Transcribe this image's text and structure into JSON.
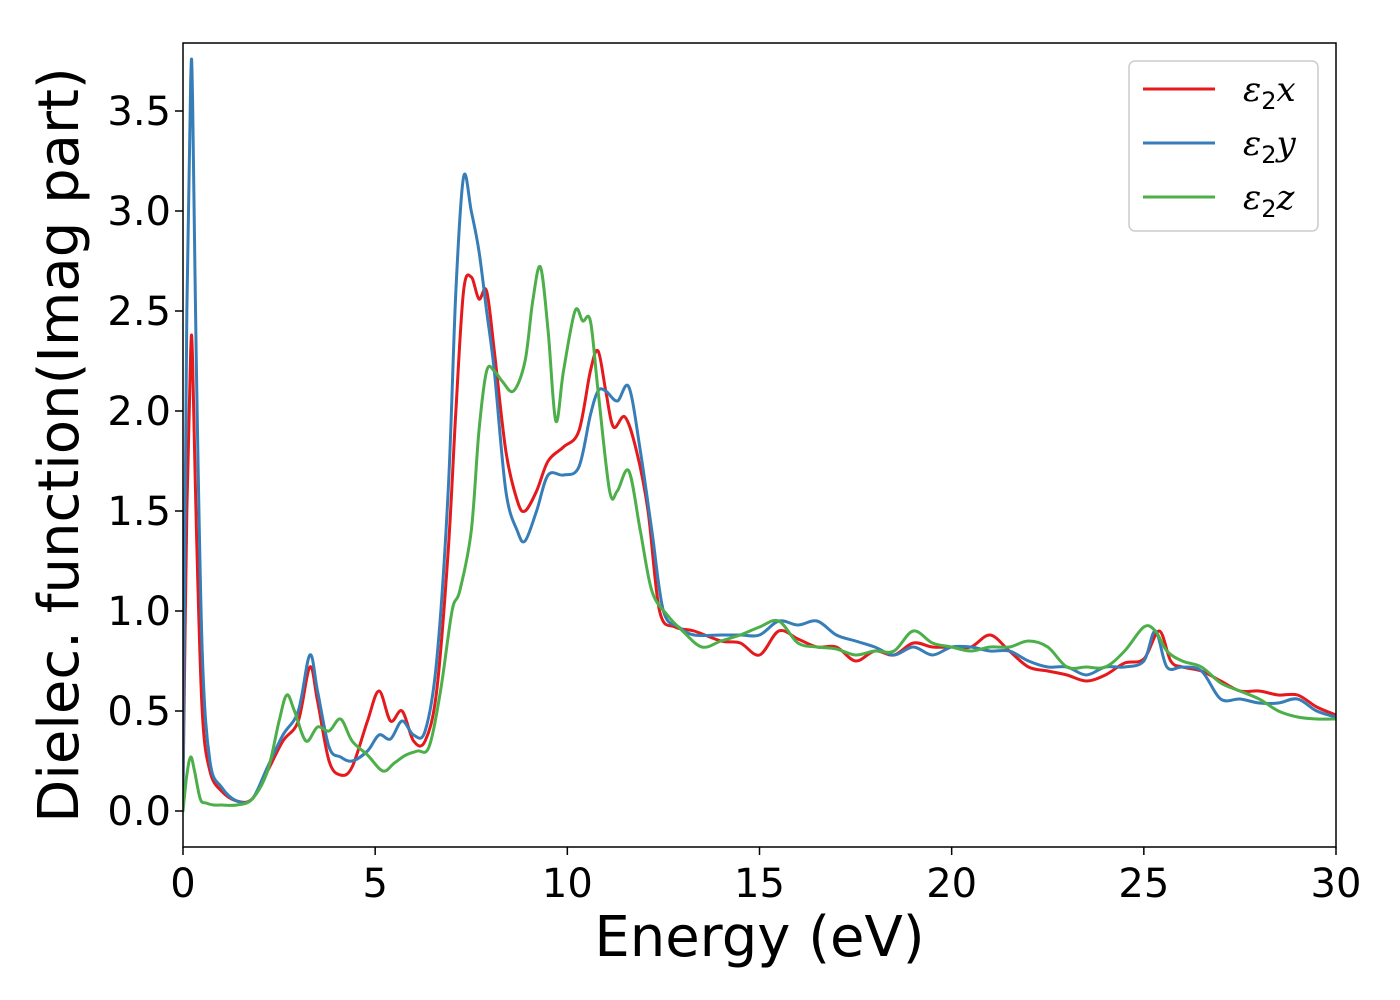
{
  "chart_data": {
    "type": "line",
    "xlabel": "Energy (eV)",
    "ylabel": "Dielec. function(Imag part)",
    "xlim": [
      0,
      30
    ],
    "ylim": [
      -0.18,
      3.84
    ],
    "xticks": [
      "0",
      "5",
      "10",
      "15",
      "20",
      "25",
      "30"
    ],
    "yticks": [
      "0.0",
      "0.5",
      "1.0",
      "1.5",
      "2.0",
      "2.5",
      "3.0",
      "3.5"
    ],
    "grid": false,
    "legend_position": "top-right",
    "series": [
      {
        "name": "ε2x",
        "legend_base": "ε",
        "legend_sub": "2",
        "legend_suffix": "x",
        "color": "#e41a1c",
        "x": [
          0,
          0.1,
          0.2,
          0.25,
          0.35,
          0.5,
          0.7,
          1.0,
          1.4,
          1.8,
          2.2,
          2.6,
          3.0,
          3.3,
          3.5,
          3.8,
          4.1,
          4.4,
          4.8,
          5.1,
          5.4,
          5.7,
          6.0,
          6.3,
          6.6,
          6.9,
          7.1,
          7.3,
          7.5,
          7.7,
          7.9,
          8.1,
          8.4,
          8.7,
          8.9,
          9.2,
          9.5,
          9.9,
          10.3,
          10.6,
          10.8,
          11.0,
          11.2,
          11.5,
          11.8,
          12.1,
          12.4,
          12.8,
          13.3,
          14.0,
          14.5,
          15.0,
          15.5,
          16.0,
          16.5,
          17.0,
          17.5,
          18.0,
          18.5,
          19.0,
          19.5,
          20.0,
          20.5,
          21.0,
          21.5,
          22.0,
          22.5,
          23.0,
          23.5,
          24.0,
          24.5,
          25.0,
          25.4,
          25.7,
          26.0,
          26.5,
          27.0,
          27.5,
          28.0,
          28.5,
          29.0,
          29.5,
          30.0
        ],
        "y": [
          0.1,
          1.5,
          2.3,
          2.25,
          1.4,
          0.5,
          0.2,
          0.1,
          0.05,
          0.06,
          0.2,
          0.35,
          0.45,
          0.72,
          0.55,
          0.25,
          0.18,
          0.22,
          0.45,
          0.6,
          0.45,
          0.5,
          0.35,
          0.35,
          0.6,
          1.3,
          2.0,
          2.6,
          2.67,
          2.56,
          2.6,
          2.3,
          1.8,
          1.55,
          1.5,
          1.6,
          1.75,
          1.82,
          1.9,
          2.2,
          2.3,
          2.1,
          1.92,
          1.97,
          1.8,
          1.5,
          1.0,
          0.92,
          0.9,
          0.85,
          0.84,
          0.78,
          0.9,
          0.86,
          0.82,
          0.82,
          0.75,
          0.8,
          0.78,
          0.84,
          0.82,
          0.82,
          0.82,
          0.88,
          0.8,
          0.72,
          0.7,
          0.68,
          0.65,
          0.68,
          0.74,
          0.76,
          0.9,
          0.75,
          0.72,
          0.7,
          0.65,
          0.6,
          0.6,
          0.58,
          0.58,
          0.52,
          0.48
        ]
      },
      {
        "name": "ε2y",
        "legend_base": "ε",
        "legend_sub": "2",
        "legend_suffix": "y",
        "color": "#377eb8",
        "x": [
          0,
          0.1,
          0.2,
          0.25,
          0.35,
          0.5,
          0.7,
          1.0,
          1.4,
          1.8,
          2.2,
          2.6,
          3.0,
          3.3,
          3.5,
          3.8,
          4.1,
          4.4,
          4.8,
          5.1,
          5.4,
          5.7,
          6.0,
          6.3,
          6.6,
          6.9,
          7.1,
          7.3,
          7.5,
          7.7,
          7.9,
          8.1,
          8.4,
          8.7,
          8.9,
          9.2,
          9.5,
          9.9,
          10.3,
          10.6,
          10.8,
          11.0,
          11.3,
          11.6,
          11.9,
          12.2,
          12.5,
          12.9,
          13.3,
          14.0,
          14.5,
          15.0,
          15.5,
          16.0,
          16.5,
          17.0,
          17.5,
          18.0,
          18.5,
          19.0,
          19.5,
          20.0,
          20.5,
          21.0,
          21.5,
          22.0,
          22.5,
          23.0,
          23.5,
          24.0,
          24.5,
          25.0,
          25.3,
          25.6,
          26.0,
          26.5,
          27.0,
          27.5,
          28.0,
          28.5,
          29.0,
          29.5,
          30.0
        ],
        "y": [
          0.1,
          2.5,
          3.65,
          3.55,
          2.2,
          0.8,
          0.25,
          0.12,
          0.05,
          0.06,
          0.22,
          0.38,
          0.5,
          0.78,
          0.6,
          0.32,
          0.27,
          0.25,
          0.3,
          0.38,
          0.36,
          0.45,
          0.38,
          0.4,
          0.75,
          1.6,
          2.6,
          3.17,
          3.0,
          2.8,
          2.5,
          2.2,
          1.6,
          1.4,
          1.35,
          1.5,
          1.68,
          1.68,
          1.72,
          1.98,
          2.1,
          2.1,
          2.05,
          2.12,
          1.8,
          1.4,
          1.0,
          0.92,
          0.88,
          0.88,
          0.88,
          0.88,
          0.95,
          0.93,
          0.95,
          0.88,
          0.85,
          0.82,
          0.78,
          0.82,
          0.78,
          0.82,
          0.82,
          0.8,
          0.8,
          0.75,
          0.72,
          0.72,
          0.68,
          0.72,
          0.72,
          0.75,
          0.9,
          0.72,
          0.72,
          0.7,
          0.56,
          0.56,
          0.54,
          0.54,
          0.56,
          0.5,
          0.47
        ]
      },
      {
        "name": "ε2z",
        "legend_base": "ε",
        "legend_sub": "2",
        "legend_suffix": "z",
        "color": "#4daf4a",
        "x": [
          0,
          0.1,
          0.2,
          0.3,
          0.45,
          0.6,
          0.8,
          1.0,
          1.4,
          1.8,
          2.2,
          2.5,
          2.7,
          2.9,
          3.2,
          3.5,
          3.8,
          4.1,
          4.4,
          4.8,
          5.2,
          5.5,
          5.8,
          6.1,
          6.4,
          6.7,
          7.0,
          7.2,
          7.5,
          7.7,
          7.9,
          8.1,
          8.3,
          8.6,
          8.9,
          9.1,
          9.3,
          9.5,
          9.7,
          9.9,
          10.2,
          10.4,
          10.6,
          10.8,
          11.1,
          11.3,
          11.6,
          11.9,
          12.2,
          12.6,
          13.0,
          13.5,
          14.0,
          14.5,
          15.0,
          15.5,
          16.0,
          16.5,
          17.0,
          17.5,
          18.0,
          18.5,
          19.0,
          19.5,
          20.0,
          20.5,
          21.0,
          21.5,
          22.0,
          22.5,
          23.0,
          23.5,
          24.0,
          24.5,
          25.0,
          25.3,
          25.6,
          26.0,
          26.5,
          27.0,
          27.5,
          28.0,
          28.5,
          29.0,
          29.5,
          30.0
        ],
        "y": [
          0.0,
          0.18,
          0.27,
          0.2,
          0.06,
          0.04,
          0.03,
          0.03,
          0.03,
          0.06,
          0.2,
          0.45,
          0.58,
          0.5,
          0.35,
          0.42,
          0.4,
          0.46,
          0.35,
          0.28,
          0.2,
          0.24,
          0.28,
          0.3,
          0.32,
          0.6,
          1.0,
          1.1,
          1.4,
          1.9,
          2.2,
          2.2,
          2.15,
          2.1,
          2.25,
          2.55,
          2.72,
          2.4,
          1.95,
          2.2,
          2.5,
          2.45,
          2.45,
          2.1,
          1.6,
          1.6,
          1.7,
          1.4,
          1.1,
          0.98,
          0.9,
          0.82,
          0.85,
          0.88,
          0.92,
          0.95,
          0.84,
          0.82,
          0.81,
          0.78,
          0.8,
          0.8,
          0.9,
          0.84,
          0.82,
          0.8,
          0.82,
          0.82,
          0.85,
          0.82,
          0.72,
          0.72,
          0.72,
          0.8,
          0.92,
          0.9,
          0.8,
          0.75,
          0.72,
          0.64,
          0.6,
          0.56,
          0.5,
          0.47,
          0.46,
          0.46
        ]
      }
    ]
  }
}
